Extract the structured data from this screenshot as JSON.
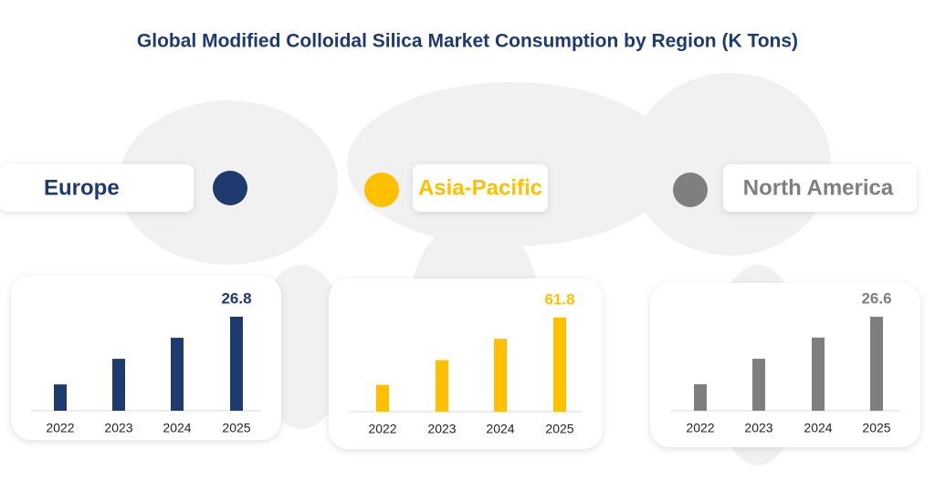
{
  "title": "Global Modified Colloidal Silica Market Consumption by Region (K Tons)",
  "chart_data": [
    {
      "type": "bar",
      "title": "Europe",
      "color": "#1f3a6e",
      "categories": [
        "2022",
        "2023",
        "2024",
        "2025"
      ],
      "values": [
        7.5,
        14.8,
        20.8,
        26.8
      ]
    },
    {
      "type": "bar",
      "title": "Asia-Pacific",
      "color": "#ffc000",
      "categories": [
        "2022",
        "2023",
        "2024",
        "2025"
      ],
      "values": [
        17.6,
        33.9,
        47.9,
        61.8
      ]
    },
    {
      "type": "bar",
      "title": "North America",
      "color": "#7f7f7f",
      "categories": [
        "2022",
        "2023",
        "2024",
        "2025"
      ],
      "values": [
        7.5,
        14.7,
        20.7,
        26.6
      ]
    }
  ]
}
